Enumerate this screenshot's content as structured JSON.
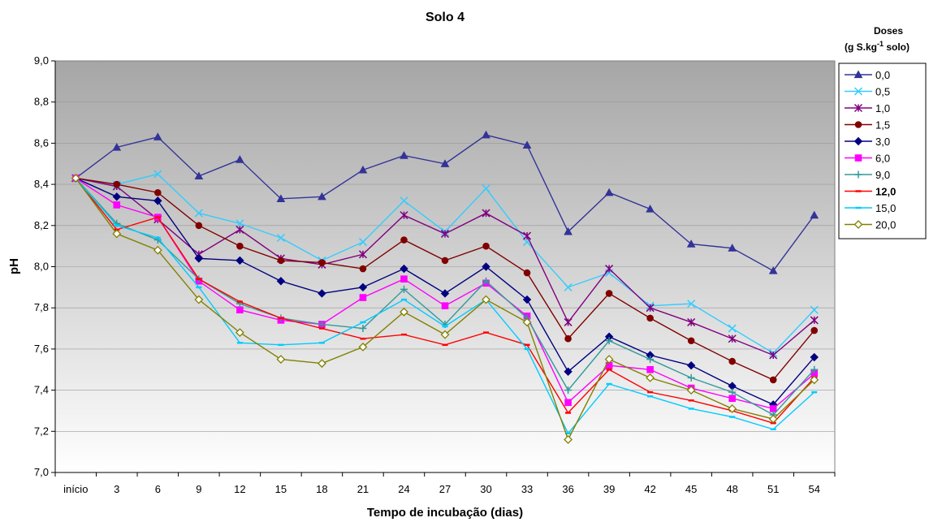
{
  "chart_data": {
    "type": "line",
    "title": "Solo 4",
    "xlabel": "Tempo de incubação (dias)",
    "ylabel": "pH",
    "ylim": [
      7.0,
      9.0
    ],
    "yticks": [
      "7,0",
      "7,2",
      "7,4",
      "7,6",
      "7,8",
      "8,0",
      "8,2",
      "8,4",
      "8,6",
      "8,8",
      "9,0"
    ],
    "categories": [
      "início",
      "3",
      "6",
      "9",
      "12",
      "15",
      "18",
      "21",
      "24",
      "27",
      "30",
      "33",
      "36",
      "39",
      "42",
      "45",
      "48",
      "51",
      "54"
    ],
    "legend": {
      "title_line1": "Doses",
      "title_line2_pre": "(g S.kg",
      "title_line2_sup": "-1",
      "title_line2_post": " solo)",
      "position": "right"
    },
    "series": [
      {
        "name": "0,0",
        "color": "#333399",
        "marker": "triangle",
        "values": [
          8.43,
          8.58,
          8.63,
          8.44,
          8.52,
          8.33,
          8.34,
          8.47,
          8.54,
          8.5,
          8.64,
          8.59,
          8.17,
          8.36,
          8.28,
          8.11,
          8.09,
          7.98,
          8.25
        ]
      },
      {
        "name": "0,5",
        "color": "#33ccff",
        "marker": "x",
        "values": [
          8.43,
          8.4,
          8.45,
          8.26,
          8.21,
          8.14,
          8.03,
          8.12,
          8.32,
          8.17,
          8.38,
          8.12,
          7.9,
          7.97,
          7.81,
          7.82,
          7.7,
          7.58,
          7.79
        ]
      },
      {
        "name": "1,0",
        "color": "#800080",
        "marker": "star",
        "values": [
          8.43,
          8.39,
          8.23,
          8.06,
          8.18,
          8.04,
          8.01,
          8.06,
          8.25,
          8.16,
          8.26,
          8.15,
          7.73,
          7.99,
          7.8,
          7.73,
          7.65,
          7.57,
          7.74
        ]
      },
      {
        "name": "1,5",
        "color": "#800000",
        "marker": "circle",
        "values": [
          8.43,
          8.4,
          8.36,
          8.2,
          8.1,
          8.03,
          8.02,
          7.99,
          8.13,
          8.03,
          8.1,
          7.97,
          7.65,
          7.87,
          7.75,
          7.64,
          7.54,
          7.45,
          7.69
        ]
      },
      {
        "name": "3,0",
        "color": "#000080",
        "marker": "diamond",
        "values": [
          8.43,
          8.34,
          8.32,
          8.04,
          8.03,
          7.93,
          7.87,
          7.9,
          7.99,
          7.87,
          8.0,
          7.84,
          7.49,
          7.66,
          7.57,
          7.52,
          7.42,
          7.33,
          7.56
        ]
      },
      {
        "name": "6,0",
        "color": "#ff00ff",
        "marker": "square",
        "values": [
          8.43,
          8.3,
          8.24,
          7.93,
          7.79,
          7.74,
          7.72,
          7.85,
          7.94,
          7.81,
          7.92,
          7.76,
          7.34,
          7.52,
          7.5,
          7.41,
          7.36,
          7.31,
          7.48
        ]
      },
      {
        "name": "9,0",
        "color": "#339999",
        "marker": "plus",
        "values": [
          8.43,
          8.21,
          8.13,
          7.94,
          7.82,
          7.75,
          7.72,
          7.7,
          7.89,
          7.72,
          7.93,
          7.75,
          7.4,
          7.64,
          7.55,
          7.46,
          7.39,
          7.28,
          7.5
        ]
      },
      {
        "name": "12,0",
        "color": "#ff0000",
        "marker": "dash",
        "bold": true,
        "values": [
          8.43,
          8.18,
          8.24,
          7.94,
          7.83,
          7.75,
          7.7,
          7.65,
          7.67,
          7.62,
          7.68,
          7.62,
          7.29,
          7.5,
          7.39,
          7.35,
          7.3,
          7.24,
          7.46
        ]
      },
      {
        "name": "15,0",
        "color": "#00ccff",
        "marker": "dash",
        "values": [
          8.43,
          8.2,
          8.14,
          7.9,
          7.63,
          7.62,
          7.63,
          7.73,
          7.84,
          7.71,
          7.84,
          7.6,
          7.19,
          7.43,
          7.37,
          7.31,
          7.27,
          7.21,
          7.39
        ]
      },
      {
        "name": "20,0",
        "color": "#808000",
        "marker": "diamond-open",
        "values": [
          8.43,
          8.16,
          8.08,
          7.84,
          7.68,
          7.55,
          7.53,
          7.61,
          7.78,
          7.67,
          7.84,
          7.73,
          7.16,
          7.55,
          7.46,
          7.4,
          7.31,
          7.26,
          7.45
        ]
      }
    ]
  }
}
